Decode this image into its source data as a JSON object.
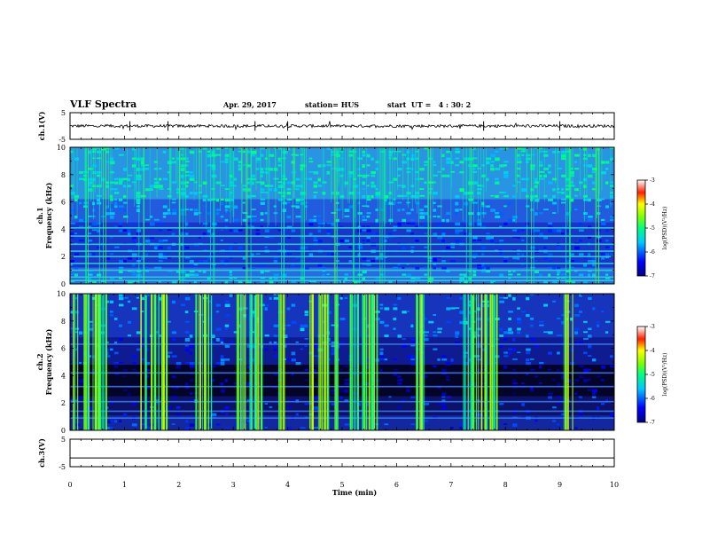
{
  "header": {
    "title": "VLF Spectra",
    "date": "Apr. 29, 2017",
    "station": "station= HUS",
    "start": "start  UT =   4 : 30: 2"
  },
  "chart_data": [
    {
      "type": "line",
      "name": "ch1-waveform",
      "ylabel": "ch.1(V)",
      "ylim": [
        -5,
        5
      ],
      "yticks": [
        "5",
        "-5"
      ],
      "xlim": [
        0,
        10
      ],
      "baseline": 0,
      "color": "#000000"
    },
    {
      "type": "heatmap",
      "name": "ch1-spectrogram",
      "ylabel_lines": [
        "ch.1",
        "Frequency  (kHz)"
      ],
      "ylim": [
        0,
        10
      ],
      "yticks": [
        "0",
        "2",
        "4",
        "6",
        "8",
        "10"
      ],
      "xlim": [
        0,
        10
      ],
      "color_scale": {
        "label": "log(PSD)(V²/Hz)",
        "min": -7,
        "max": -3,
        "ticks": [
          "-3",
          "-4",
          "-5",
          "-6",
          "-7"
        ]
      },
      "horizontal_lines_khz": [
        0.25,
        0.5,
        1.0,
        1.5,
        2.0,
        2.4,
        2.9,
        3.5,
        4.1
      ],
      "vertical_burst_times_min": [
        0.35,
        0.6,
        1.3,
        2.05,
        2.6,
        3.25,
        3.9,
        4.25,
        4.85,
        5.25,
        5.75,
        6.6,
        7.35,
        8.45,
        9.15,
        9.7
      ]
    },
    {
      "type": "heatmap",
      "name": "ch2-spectrogram",
      "ylabel_lines": [
        "ch.2",
        "Frequency  (kHz)"
      ],
      "ylim": [
        0,
        10
      ],
      "yticks": [
        "0",
        "2",
        "4",
        "6",
        "8",
        "10"
      ],
      "xlim": [
        0,
        10
      ],
      "color_scale": {
        "label": "log(PSD)(V²/Hz)",
        "min": -7,
        "max": -3,
        "ticks": [
          "-3",
          "-4",
          "-5",
          "-6",
          "-7"
        ]
      },
      "horizontal_lines_khz": [
        0.9,
        1.4,
        2.1,
        3.2,
        4.2,
        6.3
      ],
      "burst_bands_min": [
        [
          0.05,
          0.7
        ],
        [
          1.3,
          1.8
        ],
        [
          2.3,
          2.6
        ],
        [
          3.05,
          3.55
        ],
        [
          3.8,
          3.95
        ],
        [
          4.4,
          4.75
        ],
        [
          4.85,
          4.95
        ],
        [
          5.15,
          5.65
        ],
        [
          6.3,
          6.55
        ],
        [
          7.2,
          7.85
        ],
        [
          9.05,
          9.25
        ]
      ]
    },
    {
      "type": "line",
      "name": "ch3-waveform",
      "ylabel": "ch.3(V)",
      "ylim": [
        -5,
        5
      ],
      "yticks": [
        "5",
        "-5"
      ],
      "xlim": [
        0,
        10
      ],
      "baseline": -1.8,
      "color": "#000000"
    }
  ],
  "x_axis": {
    "label": "Time  (min)",
    "ticks": [
      "0",
      "1",
      "2",
      "3",
      "4",
      "5",
      "6",
      "7",
      "8",
      "9",
      "10"
    ]
  }
}
